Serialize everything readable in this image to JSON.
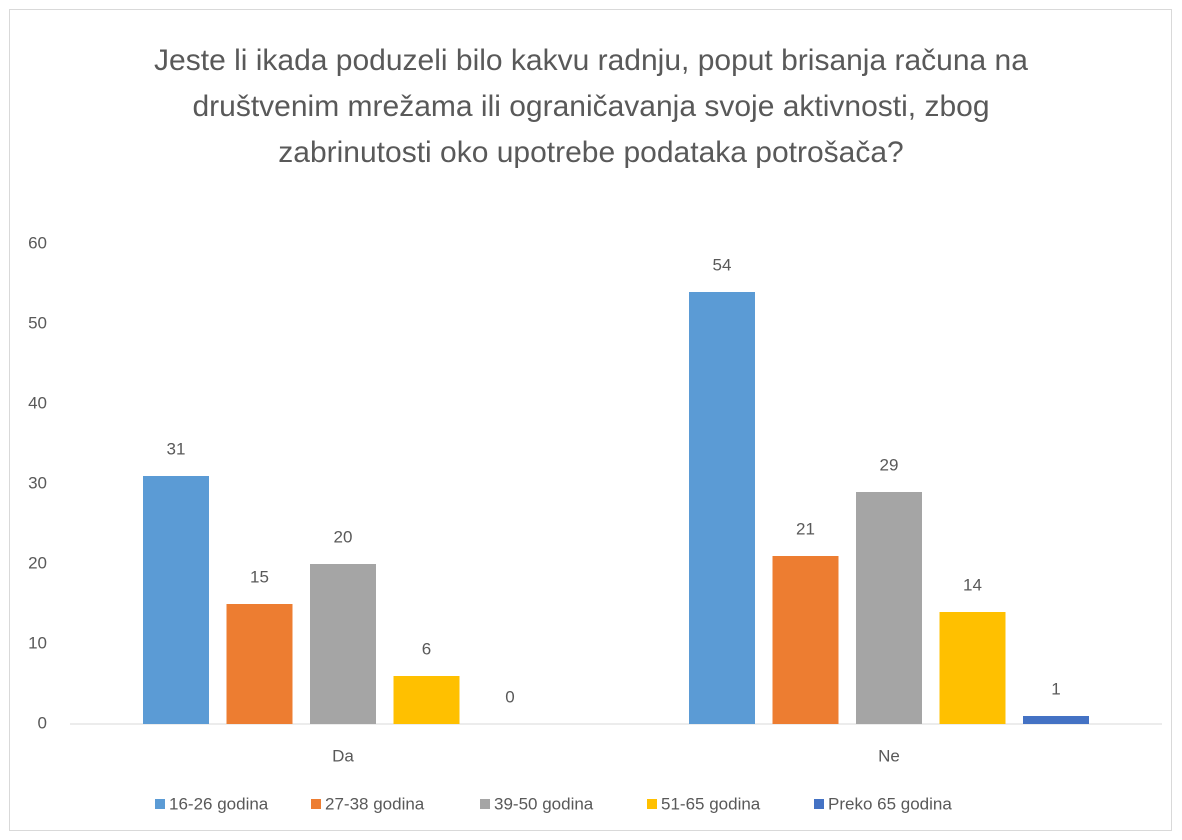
{
  "chart_data": {
    "type": "bar",
    "title": "Jeste li ikada poduzeli bilo kakvu radnju, poput brisanja računa na društvenim mrežama ili ograničavanja svoje aktivnosti, zbog zabrinutosti oko upotrebe podataka potrošača?",
    "categories": [
      "Da",
      "Ne"
    ],
    "series": [
      {
        "name": "16-26 godina",
        "color": "#5b9bd5",
        "values": [
          31,
          54
        ]
      },
      {
        "name": "27-38 godina",
        "color": "#ed7d31",
        "values": [
          15,
          21
        ]
      },
      {
        "name": "39-50 godina",
        "color": "#a5a5a5",
        "values": [
          20,
          29
        ]
      },
      {
        "name": "51-65 godina",
        "color": "#ffc000",
        "values": [
          6,
          14
        ]
      },
      {
        "name": "Preko 65 godina",
        "color": "#4472c4",
        "values": [
          0,
          1
        ]
      }
    ],
    "ylim": [
      0,
      60
    ],
    "yticks": [
      0,
      10,
      20,
      30,
      40,
      50,
      60
    ],
    "grid": false,
    "legend": "bottom"
  }
}
